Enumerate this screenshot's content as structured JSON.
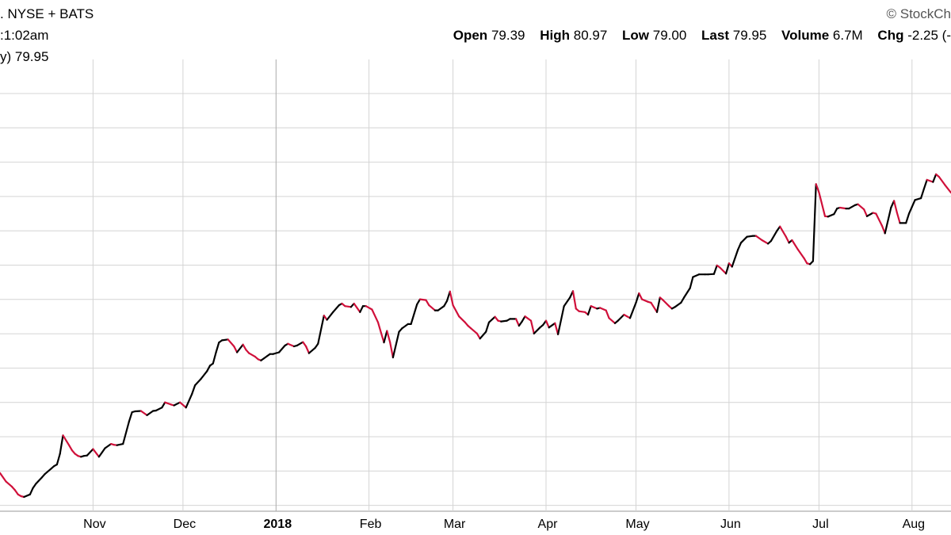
{
  "header": {
    "exchange": ". NYSE + BATS",
    "time": ":1:02am",
    "legend": "y) 79.95",
    "watermark": "© StockCh",
    "ohlc": {
      "open_label": "Open",
      "open": "79.39",
      "high_label": "High",
      "high": "80.97",
      "low_label": "Low",
      "low": "79.00",
      "last_label": "Last",
      "last": "79.95",
      "volume_label": "Volume",
      "volume": "6.7M",
      "chg_label": "Chg",
      "chg": "-2.25 (-"
    }
  },
  "colors": {
    "up": "#000000",
    "down": "#d0103a",
    "grid": "#d4d4d4",
    "year_grid": "#aaaaaa"
  },
  "chart_data": {
    "type": "line",
    "title": "",
    "xlabel": "",
    "ylabel": "",
    "y_axis_labels": "not visible",
    "x_ticks": [
      {
        "label": "Nov",
        "day": 22
      },
      {
        "label": "Dec",
        "day": 52
      },
      {
        "label": "2018",
        "day": 83,
        "bold": true
      },
      {
        "label": "Feb",
        "day": 114
      },
      {
        "label": "Mar",
        "day": 142
      },
      {
        "label": "Apr",
        "day": 173
      },
      {
        "label": "May",
        "day": 203
      },
      {
        "label": "Jun",
        "day": 234
      },
      {
        "label": "Jul",
        "day": 264
      },
      {
        "label": "Aug",
        "day": 295
      }
    ],
    "x_range_days": [
      -9,
      308
    ],
    "y_range": [
      0,
      1
    ],
    "grid": true,
    "series": [
      {
        "name": "",
        "points": [
          [
            -9,
            0.08
          ],
          [
            -7,
            0.06
          ],
          [
            -5,
            0.048
          ],
          [
            -4,
            0.04
          ],
          [
            -3,
            0.03
          ],
          [
            -2,
            0.026
          ],
          [
            -1,
            0.024
          ],
          [
            1,
            0.03
          ],
          [
            2,
            0.045
          ],
          [
            3,
            0.055
          ],
          [
            5,
            0.07
          ],
          [
            6,
            0.078
          ],
          [
            8,
            0.09
          ],
          [
            9,
            0.096
          ],
          [
            10,
            0.1
          ],
          [
            11,
            0.125
          ],
          [
            12,
            0.168
          ],
          [
            14,
            0.145
          ],
          [
            15,
            0.133
          ],
          [
            16,
            0.125
          ],
          [
            17,
            0.12
          ],
          [
            18,
            0.118
          ],
          [
            19,
            0.12
          ],
          [
            20,
            0.121
          ],
          [
            22,
            0.136
          ],
          [
            24,
            0.118
          ],
          [
            26,
            0.138
          ],
          [
            28,
            0.148
          ],
          [
            29,
            0.146
          ],
          [
            30,
            0.145
          ],
          [
            32,
            0.148
          ],
          [
            34,
            0.2
          ],
          [
            35,
            0.222
          ],
          [
            36,
            0.224
          ],
          [
            38,
            0.225
          ],
          [
            40,
            0.215
          ],
          [
            42,
            0.225
          ],
          [
            43,
            0.226
          ],
          [
            45,
            0.233
          ],
          [
            46,
            0.245
          ],
          [
            48,
            0.24
          ],
          [
            49,
            0.238
          ],
          [
            51,
            0.245
          ],
          [
            53,
            0.233
          ],
          [
            55,
            0.265
          ],
          [
            56,
            0.285
          ],
          [
            58,
            0.3
          ],
          [
            60,
            0.318
          ],
          [
            61,
            0.331
          ],
          [
            62,
            0.336
          ],
          [
            63,
            0.362
          ],
          [
            64,
            0.385
          ],
          [
            65,
            0.39
          ],
          [
            67,
            0.392
          ],
          [
            69,
            0.376
          ],
          [
            70,
            0.362
          ],
          [
            72,
            0.38
          ],
          [
            73,
            0.368
          ],
          [
            74,
            0.36
          ],
          [
            76,
            0.352
          ],
          [
            77,
            0.346
          ],
          [
            78,
            0.343
          ],
          [
            79,
            0.348
          ],
          [
            80,
            0.353
          ],
          [
            81,
            0.358
          ],
          [
            82,
            0.358
          ],
          [
            84,
            0.362
          ],
          [
            86,
            0.378
          ],
          [
            87,
            0.382
          ],
          [
            89,
            0.376
          ],
          [
            90,
            0.378
          ],
          [
            92,
            0.386
          ],
          [
            93,
            0.376
          ],
          [
            94,
            0.36
          ],
          [
            96,
            0.372
          ],
          [
            97,
            0.382
          ],
          [
            99,
            0.448
          ],
          [
            100,
            0.438
          ],
          [
            102,
            0.456
          ],
          [
            104,
            0.472
          ],
          [
            105,
            0.476
          ],
          [
            106,
            0.47
          ],
          [
            108,
            0.468
          ],
          [
            109,
            0.476
          ],
          [
            110,
            0.466
          ],
          [
            111,
            0.456
          ],
          [
            112,
            0.47
          ],
          [
            113,
            0.47
          ],
          [
            115,
            0.462
          ],
          [
            117,
            0.432
          ],
          [
            118,
            0.408
          ],
          [
            119,
            0.385
          ],
          [
            120,
            0.412
          ],
          [
            121,
            0.386
          ],
          [
            122,
            0.35
          ],
          [
            124,
            0.41
          ],
          [
            125,
            0.418
          ],
          [
            127,
            0.428
          ],
          [
            128,
            0.428
          ],
          [
            130,
            0.474
          ],
          [
            131,
            0.486
          ],
          [
            133,
            0.484
          ],
          [
            134,
            0.472
          ],
          [
            136,
            0.46
          ],
          [
            137,
            0.46
          ],
          [
            139,
            0.47
          ],
          [
            140,
            0.482
          ],
          [
            141,
            0.504
          ],
          [
            142,
            0.472
          ],
          [
            144,
            0.446
          ],
          [
            146,
            0.432
          ],
          [
            147,
            0.424
          ],
          [
            148,
            0.418
          ],
          [
            150,
            0.406
          ],
          [
            151,
            0.394
          ],
          [
            153,
            0.41
          ],
          [
            154,
            0.432
          ],
          [
            156,
            0.445
          ],
          [
            157,
            0.436
          ],
          [
            158,
            0.434
          ],
          [
            160,
            0.436
          ],
          [
            161,
            0.44
          ],
          [
            163,
            0.44
          ],
          [
            164,
            0.424
          ],
          [
            165,
            0.434
          ],
          [
            166,
            0.446
          ],
          [
            168,
            0.436
          ],
          [
            169,
            0.406
          ],
          [
            171,
            0.42
          ],
          [
            172,
            0.426
          ],
          [
            173,
            0.436
          ],
          [
            174,
            0.42
          ],
          [
            176,
            0.43
          ],
          [
            177,
            0.404
          ],
          [
            179,
            0.47
          ],
          [
            181,
            0.49
          ],
          [
            182,
            0.505
          ],
          [
            183,
            0.464
          ],
          [
            184,
            0.458
          ],
          [
            186,
            0.456
          ],
          [
            187,
            0.45
          ],
          [
            188,
            0.47
          ],
          [
            190,
            0.464
          ],
          [
            191,
            0.466
          ],
          [
            193,
            0.46
          ],
          [
            194,
            0.442
          ],
          [
            196,
            0.43
          ],
          [
            197,
            0.436
          ],
          [
            199,
            0.45
          ],
          [
            200,
            0.446
          ],
          [
            201,
            0.442
          ],
          [
            203,
            0.478
          ],
          [
            204,
            0.5
          ],
          [
            205,
            0.486
          ],
          [
            207,
            0.48
          ],
          [
            208,
            0.478
          ],
          [
            210,
            0.456
          ],
          [
            211,
            0.49
          ],
          [
            212,
            0.484
          ],
          [
            214,
            0.47
          ],
          [
            215,
            0.464
          ],
          [
            216,
            0.468
          ],
          [
            218,
            0.478
          ],
          [
            219,
            0.49
          ],
          [
            221,
            0.512
          ],
          [
            222,
            0.538
          ],
          [
            224,
            0.544
          ],
          [
            226,
            0.544
          ],
          [
            227,
            0.544
          ],
          [
            229,
            0.545
          ],
          [
            230,
            0.565
          ],
          [
            231,
            0.56
          ],
          [
            233,
            0.546
          ],
          [
            234,
            0.57
          ],
          [
            235,
            0.562
          ],
          [
            237,
            0.602
          ],
          [
            238,
            0.618
          ],
          [
            240,
            0.632
          ],
          [
            242,
            0.634
          ],
          [
            243,
            0.634
          ],
          [
            245,
            0.624
          ],
          [
            247,
            0.616
          ],
          [
            248,
            0.622
          ],
          [
            250,
            0.646
          ],
          [
            251,
            0.656
          ],
          [
            253,
            0.632
          ],
          [
            254,
            0.618
          ],
          [
            255,
            0.624
          ],
          [
            257,
            0.602
          ],
          [
            259,
            0.582
          ],
          [
            260,
            0.57
          ],
          [
            261,
            0.568
          ],
          [
            262,
            0.575
          ],
          [
            263,
            0.755
          ],
          [
            264,
            0.736
          ],
          [
            266,
            0.68
          ],
          [
            267,
            0.679
          ],
          [
            269,
            0.685
          ],
          [
            270,
            0.698
          ],
          [
            271,
            0.7
          ],
          [
            273,
            0.698
          ],
          [
            274,
            0.698
          ],
          [
            276,
            0.706
          ],
          [
            277,
            0.708
          ],
          [
            279,
            0.696
          ],
          [
            280,
            0.68
          ],
          [
            282,
            0.688
          ],
          [
            283,
            0.686
          ],
          [
            285,
            0.658
          ],
          [
            286,
            0.64
          ],
          [
            288,
            0.7
          ],
          [
            289,
            0.716
          ],
          [
            290,
            0.688
          ],
          [
            291,
            0.664
          ],
          [
            293,
            0.664
          ],
          [
            294,
            0.686
          ],
          [
            295,
            0.702
          ],
          [
            296,
            0.718
          ],
          [
            298,
            0.722
          ],
          [
            299,
            0.744
          ],
          [
            300,
            0.765
          ],
          [
            302,
            0.76
          ],
          [
            303,
            0.778
          ],
          [
            304,
            0.772
          ],
          [
            306,
            0.753
          ],
          [
            308,
            0.735
          ]
        ]
      }
    ]
  }
}
